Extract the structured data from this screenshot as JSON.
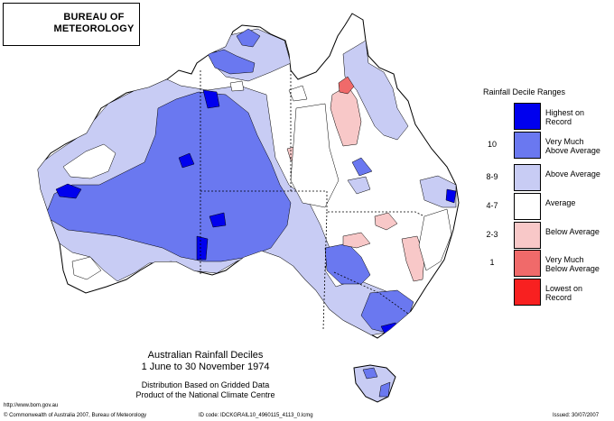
{
  "logo": {
    "org_line1": "BUREAU OF",
    "org_line2": "METEOROLOGY"
  },
  "map": {
    "title_line1": "Australian Rainfall Deciles",
    "title_line2": "1 June to 30 November 1974",
    "subtitle_line1": "Distribution Based on Gridded Data",
    "subtitle_line2": "Product of the National Climate Centre"
  },
  "legend": {
    "title": "Rainfall Decile Ranges",
    "items": [
      {
        "code": "",
        "label_line1": "Highest on",
        "label_line2": "Record",
        "color": "#0000ee"
      },
      {
        "code": "10",
        "label_line1": "Very Much",
        "label_line2": "Above Average",
        "color": "#6a78f0"
      },
      {
        "code": "8-9",
        "label_line1": "Above Average",
        "label_line2": "",
        "color": "#c8ccf4"
      },
      {
        "code": "4-7",
        "label_line1": "Average",
        "label_line2": "",
        "color": "#ffffff"
      },
      {
        "code": "2-3",
        "label_line1": "Below Average",
        "label_line2": "",
        "color": "#f8c8c8"
      },
      {
        "code": "1",
        "label_line1": "Very Much",
        "label_line2": "Below Average",
        "color": "#f06a6a"
      },
      {
        "code": "",
        "label_line1": "Lowest on",
        "label_line2": "Record",
        "color": "#f82020"
      }
    ]
  },
  "footer": {
    "url": "http://www.bom.gov.au",
    "copyright": "© Commonwealth of Australia 2007, Bureau of Meteorology",
    "id_code": "ID code: IDCKGRAIL10_4960115_4113_0.lcmg",
    "issued": "Issued: 30/07/2007"
  }
}
